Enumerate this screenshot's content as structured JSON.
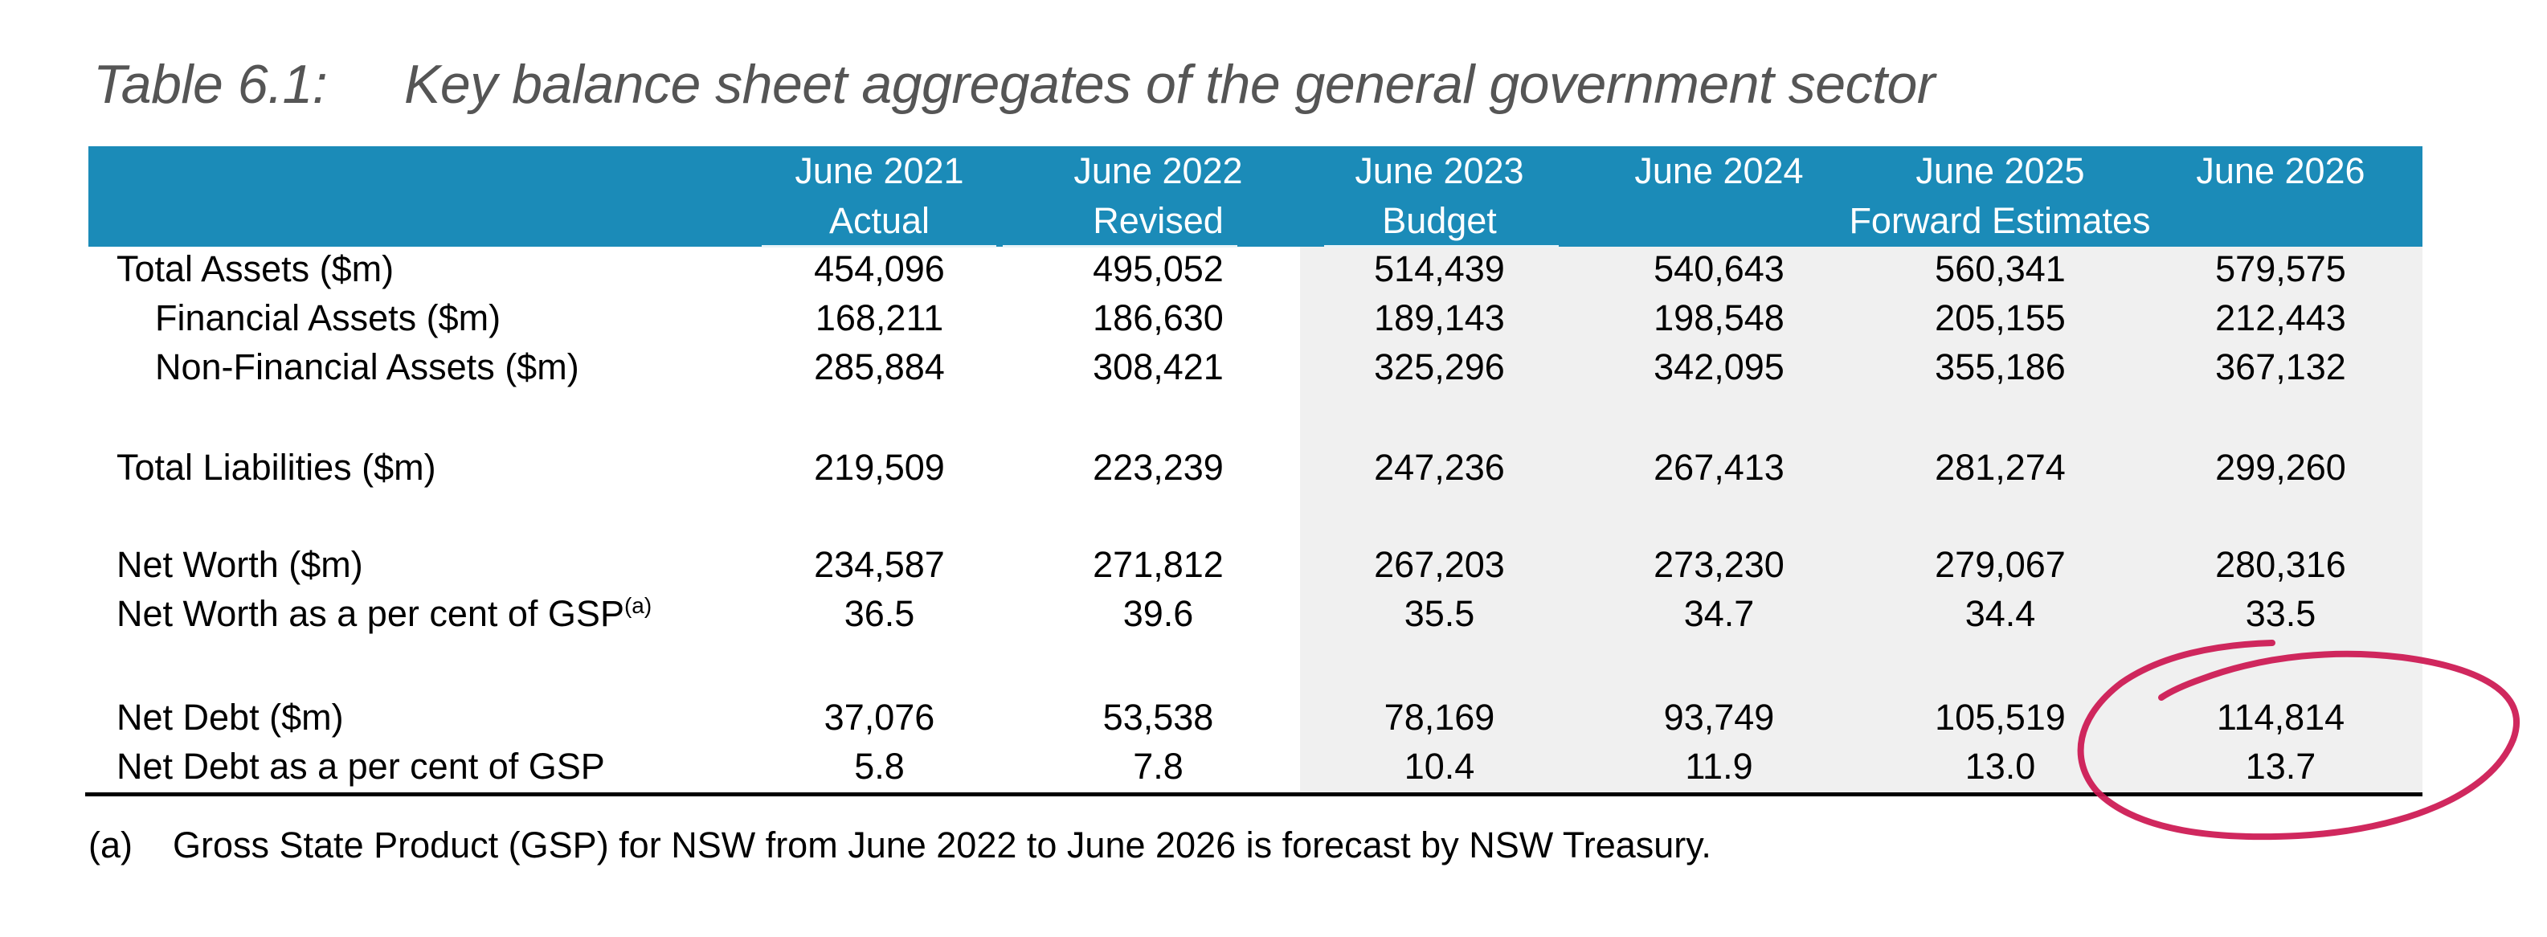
{
  "title": {
    "number": "Table 6.1:",
    "text": "Key balance sheet aggregates of the general government sector"
  },
  "columns": [
    {
      "period": "June 2021",
      "status": "Actual"
    },
    {
      "period": "June 2022",
      "status": "Revised"
    },
    {
      "period": "June 2023",
      "status": "Budget"
    },
    {
      "period": "June 2024",
      "status": ""
    },
    {
      "period": "June 2025",
      "status": ""
    },
    {
      "period": "June 2026",
      "status": ""
    }
  ],
  "forward_estimates_label": "Forward Estimates",
  "rows": [
    {
      "label": "Total Assets ($m)",
      "indent": false,
      "values": [
        "454,096",
        "495,052",
        "514,439",
        "540,643",
        "560,341",
        "579,575"
      ]
    },
    {
      "label": "Financial Assets ($m)",
      "indent": true,
      "values": [
        "168,211",
        "186,630",
        "189,143",
        "198,548",
        "205,155",
        "212,443"
      ]
    },
    {
      "label": "Non-Financial Assets ($m)",
      "indent": true,
      "values": [
        "285,884",
        "308,421",
        "325,296",
        "342,095",
        "355,186",
        "367,132"
      ]
    },
    {
      "label": "Total Liabilities ($m)",
      "indent": false,
      "values": [
        "219,509",
        "223,239",
        "247,236",
        "267,413",
        "281,274",
        "299,260"
      ]
    },
    {
      "label": "Net Worth ($m)",
      "indent": false,
      "values": [
        "234,587",
        "271,812",
        "267,203",
        "273,230",
        "279,067",
        "280,316"
      ]
    },
    {
      "label": "Net Worth as a per cent of GSP",
      "footnote_ref": "(a)",
      "indent": false,
      "values": [
        "36.5",
        "39.6",
        "35.5",
        "34.7",
        "34.4",
        "33.5"
      ]
    },
    {
      "label": "Net Debt ($m)",
      "indent": false,
      "values": [
        "37,076",
        "53,538",
        "78,169",
        "93,749",
        "105,519",
        "114,814"
      ]
    },
    {
      "label": "Net Debt as a per cent of GSP",
      "indent": false,
      "values": [
        "5.8",
        "7.8",
        "10.4",
        "11.9",
        "13.0",
        "13.7"
      ]
    }
  ],
  "footnote": {
    "marker": "(a)",
    "text": "Gross State Product (GSP) for NSW from June 2022 to June 2026 is forecast by NSW Treasury."
  },
  "annotation": {
    "type": "hand-drawn circle",
    "target": "Net Debt June 2026 (114,814 / 13.7)",
    "color": "#cc1650"
  },
  "colors": {
    "header_bg": "#1b8bb8",
    "header_text": "#ffffff",
    "forecast_shading": "#f0f0f0",
    "title_text": "#555555"
  }
}
